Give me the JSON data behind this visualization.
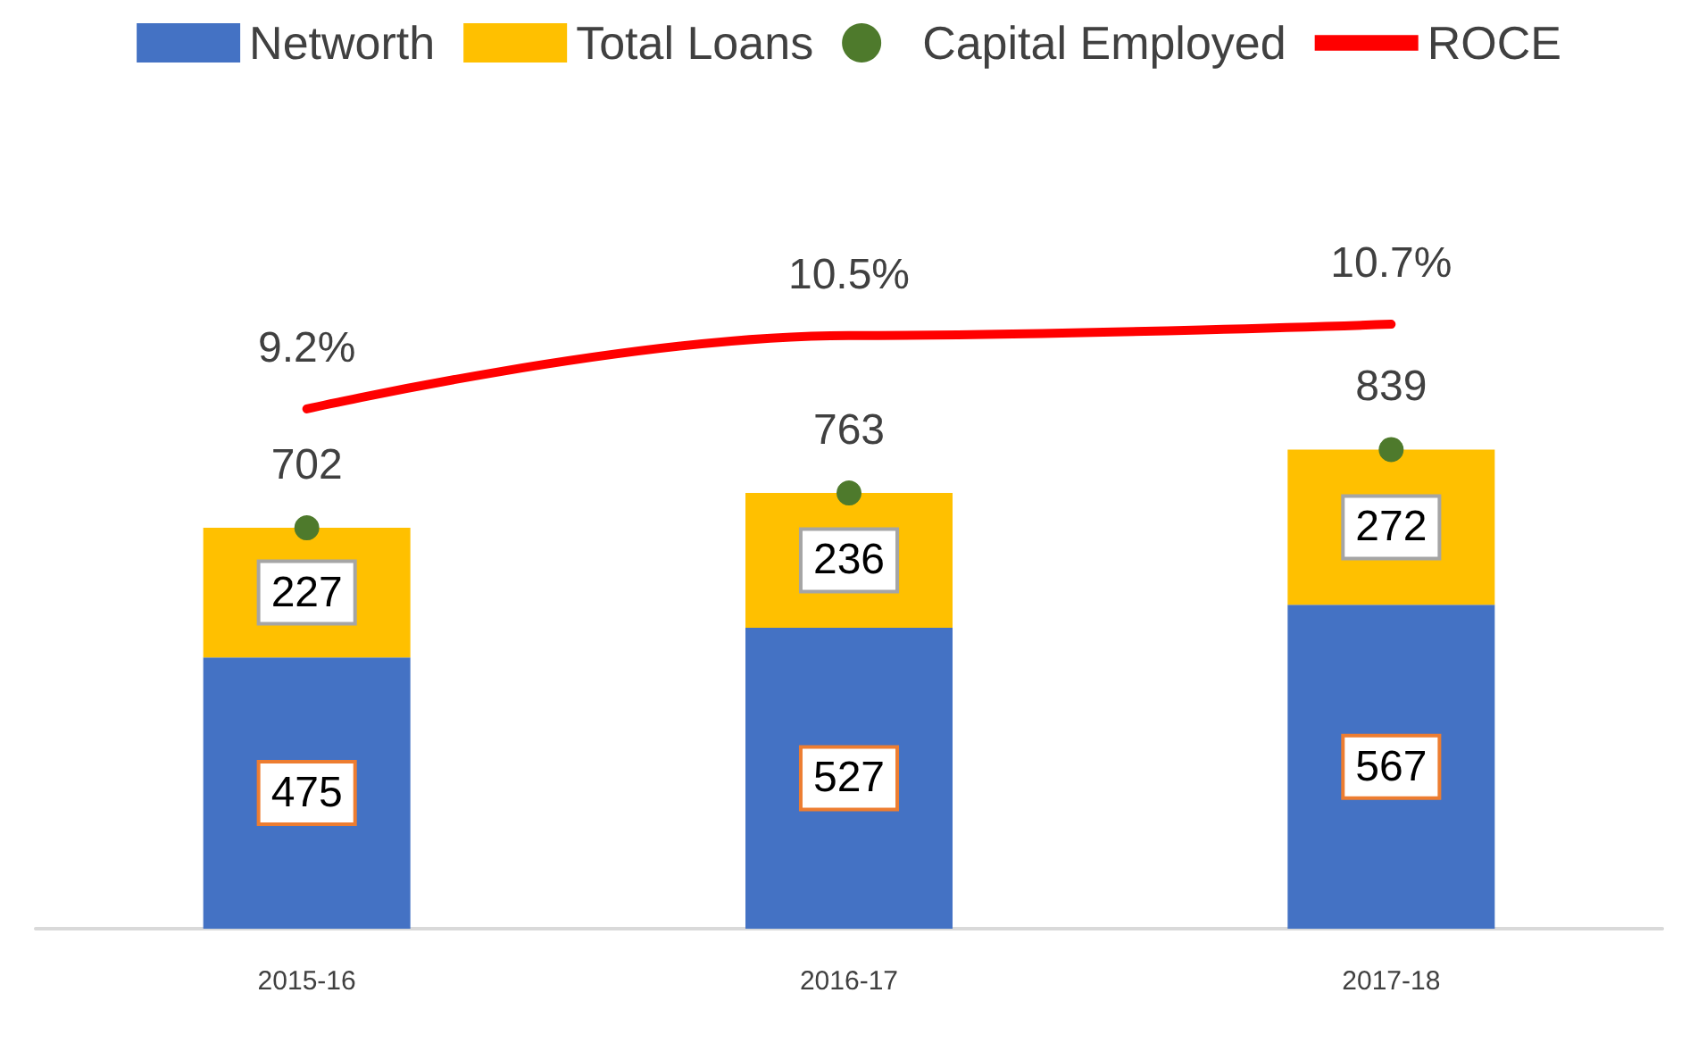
{
  "chart_data": {
    "type": "bar",
    "stacked": true,
    "categories": [
      "2015-16",
      "2016-17",
      "2017-18"
    ],
    "series": [
      {
        "name": "Networth",
        "color": "#4472c4",
        "values": [
          475,
          527,
          567
        ]
      },
      {
        "name": "Total Loans",
        "color": "#ffc000",
        "values": [
          227,
          236,
          272
        ]
      },
      {
        "name": "Capital Employed",
        "type": "scatter",
        "color": "#4e7a2c",
        "marker": "circle",
        "values": [
          702,
          763,
          839
        ]
      },
      {
        "name": "ROCE",
        "type": "line",
        "color": "#ff0000",
        "axis": "y2",
        "marker": "none",
        "values": [
          9.2,
          10.5,
          10.7
        ],
        "value_labels": [
          "9.2%",
          "10.5%",
          "10.7%"
        ]
      }
    ],
    "data_labels": true,
    "legend": "top"
  }
}
